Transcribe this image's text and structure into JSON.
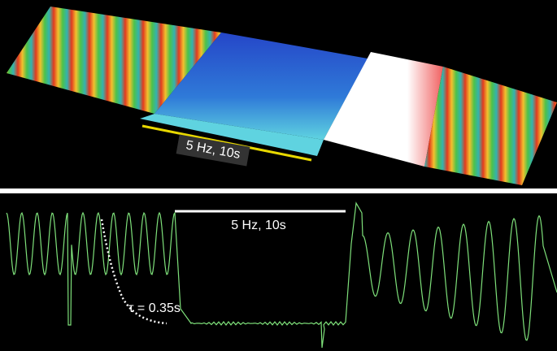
{
  "top_panel": {
    "stimulus_label": "5 Hz, 10s"
  },
  "bottom_panel": {
    "stimulus_label": "5 Hz, 10s",
    "tau_label": "τ = 0.35s"
  }
}
